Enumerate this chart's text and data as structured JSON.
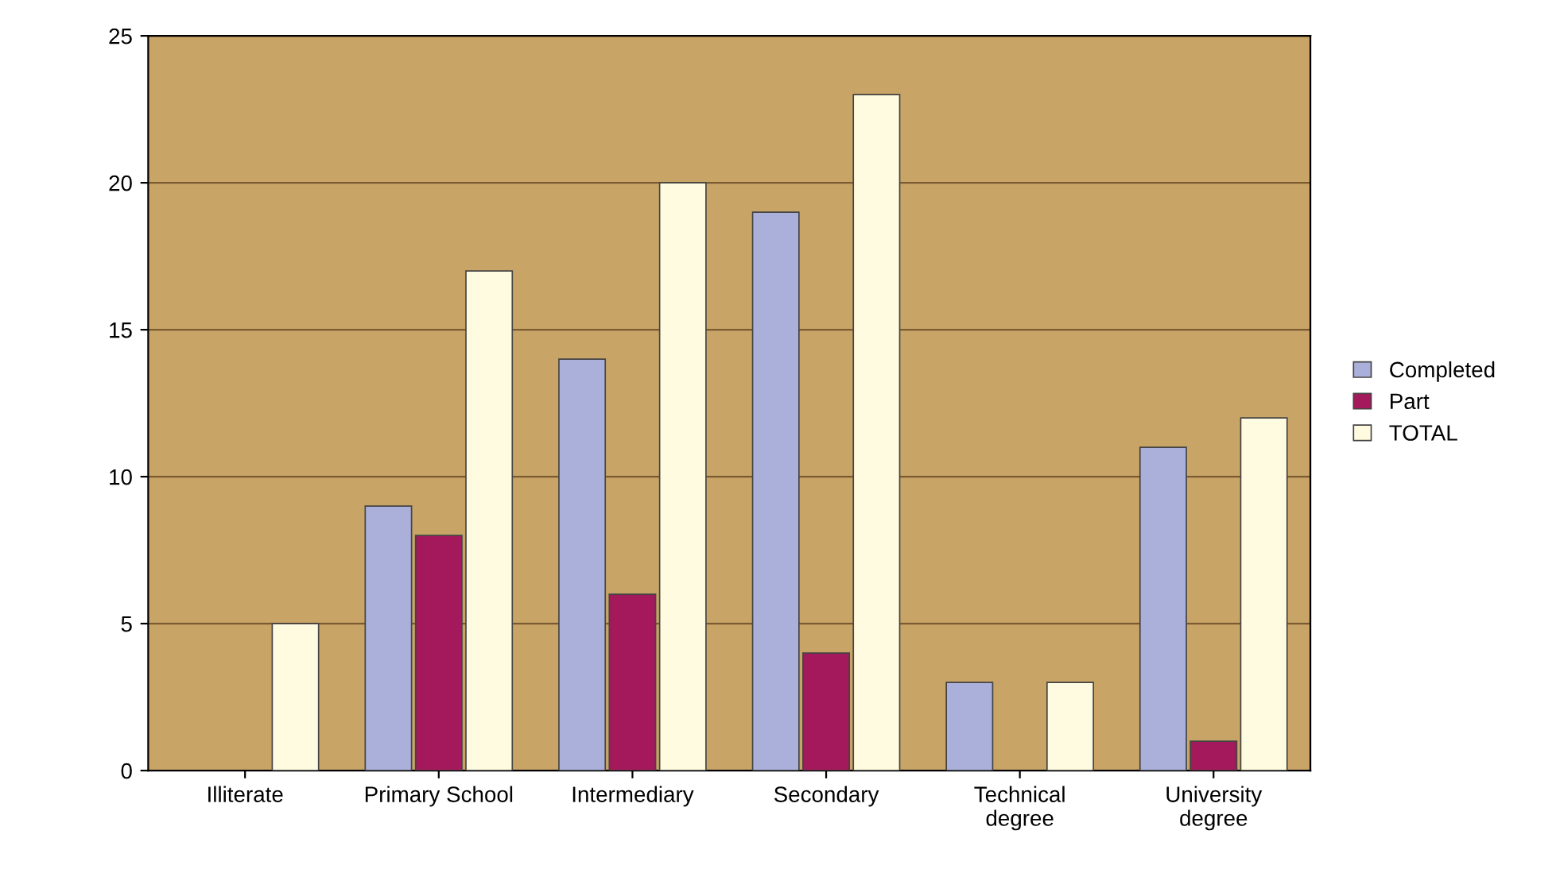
{
  "chart_data": {
    "type": "bar",
    "categories": [
      "Illiterate",
      "Primary School",
      "Intermediary",
      "Secondary",
      "Technical degree",
      "University degree"
    ],
    "series": [
      {
        "name": "Completed",
        "color": "#aab0da",
        "values": [
          null,
          9,
          14,
          19,
          3,
          11
        ]
      },
      {
        "name": "Part",
        "color": "#a3195b",
        "values": [
          null,
          8,
          6,
          4,
          null,
          1
        ]
      },
      {
        "name": "TOTAL",
        "color": "#fffbe0",
        "values": [
          5,
          17,
          20,
          23,
          3,
          12
        ]
      }
    ],
    "ylim": [
      0,
      25
    ],
    "yticks": [
      0,
      5,
      10,
      15,
      20,
      25
    ],
    "grid": "y",
    "legend": "right"
  }
}
